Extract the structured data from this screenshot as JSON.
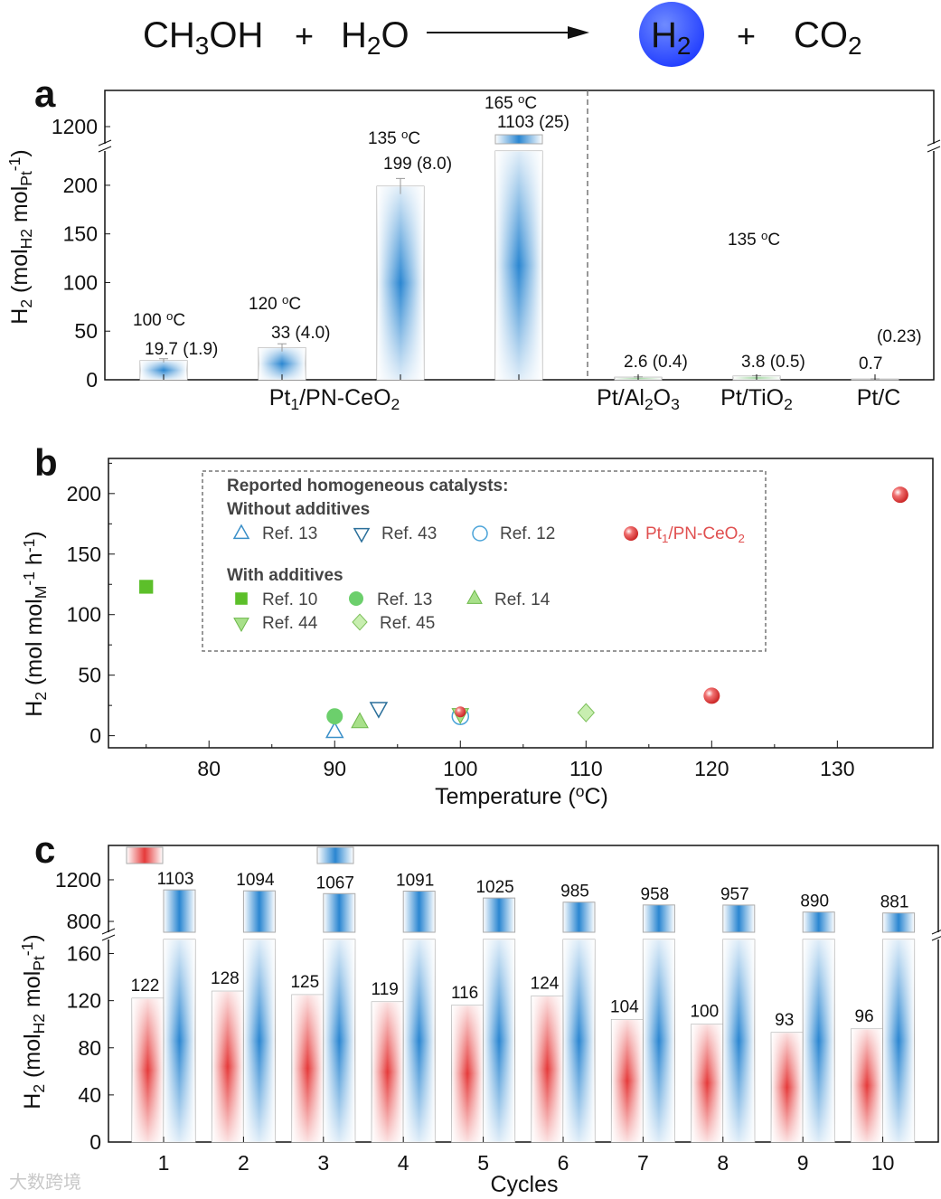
{
  "equation": {
    "reactant1": [
      [
        "CH",
        ""
      ],
      [
        "3",
        "sub"
      ],
      [
        "OH",
        ""
      ]
    ],
    "plus1": "+",
    "reactant2": [
      [
        "H",
        ""
      ],
      [
        "2",
        "sub"
      ],
      [
        "O",
        ""
      ]
    ],
    "product1": [
      [
        "H",
        ""
      ],
      [
        "2",
        "sub"
      ]
    ],
    "plus2": "+",
    "product2": [
      [
        "CO",
        ""
      ],
      [
        "2",
        "sub"
      ]
    ],
    "h2_circle_color": "#1f3bff"
  },
  "chart_data": [
    {
      "panel": "a",
      "type": "bar",
      "ylabel": [
        [
          "H",
          ""
        ],
        [
          "2",
          "sub"
        ],
        [
          " (mol",
          ""
        ],
        [
          "H2",
          "sub"
        ],
        [
          " mol",
          ""
        ],
        [
          "Pt",
          "sub"
        ],
        [
          "-1",
          "sup"
        ],
        [
          ")",
          ""
        ]
      ],
      "y_ticks_lower": [
        0,
        50,
        100,
        150,
        200
      ],
      "y_ticks_upper": [
        1200
      ],
      "ylim_lower": [
        0,
        225
      ],
      "ylim_upper": [
        953,
        1630
      ],
      "axis_break": true,
      "bars": [
        {
          "group": "Pt1/PN-CeO2",
          "temp": "100",
          "value": 19.7,
          "error": 1.9,
          "value_label": "19.7",
          "error_label": "(1.9)"
        },
        {
          "group": "Pt1/PN-CeO2",
          "temp": "120",
          "value": 33,
          "error": 4.0,
          "value_label": "33",
          "error_label": "(4.0)"
        },
        {
          "group": "Pt1/PN-CeO2",
          "temp": "135",
          "value": 199,
          "error": 8.0,
          "value_label": "199",
          "error_label": "(8.0)"
        },
        {
          "group": "Pt1/PN-CeO2",
          "temp": "165",
          "value": 1103,
          "error": 25,
          "value_label": "1103",
          "error_label": "(25)"
        },
        {
          "group": "Pt/Al2O3",
          "temp": "",
          "value": 2.6,
          "error": 0.4,
          "value_label": "2.6",
          "error_label": "(0.4)"
        },
        {
          "group": "Pt/TiO2",
          "temp": "",
          "value": 3.8,
          "error": 0.5,
          "value_label": "3.8",
          "error_label": "(0.5)"
        },
        {
          "group": "Pt/C",
          "temp": "",
          "value": 0.7,
          "error": 0.23,
          "value_label": "0.7",
          "error_label": "(0.23)"
        }
      ],
      "temp_unit": [
        [
          "o",
          "sup"
        ],
        [
          "C",
          ""
        ]
      ],
      "shared_temp_label": "135",
      "categories": [
        [
          [
            "Pt",
            ""
          ],
          [
            "1",
            "sub"
          ],
          [
            "/PN-CeO",
            ""
          ],
          [
            "2",
            "sub"
          ]
        ],
        [
          [
            "Pt/Al",
            ""
          ],
          [
            "2",
            "sub"
          ],
          [
            "O",
            ""
          ],
          [
            "3",
            "sub"
          ]
        ],
        [
          [
            "Pt/TiO",
            ""
          ],
          [
            "2",
            "sub"
          ]
        ],
        [
          [
            "Pt/C",
            ""
          ]
        ]
      ],
      "bar_color": "#2a86d1",
      "other_bar_color": "#8fd08f"
    },
    {
      "panel": "b",
      "type": "scatter",
      "xlabel": [
        [
          "Temperature (",
          ""
        ],
        [
          "o",
          "sup"
        ],
        [
          "C)",
          ""
        ]
      ],
      "ylabel": [
        [
          "H",
          ""
        ],
        [
          "2",
          "sub"
        ],
        [
          " (mol mol",
          ""
        ],
        [
          "M",
          "sub"
        ],
        [
          "-1",
          "sup"
        ],
        [
          " h",
          ""
        ],
        [
          "-1",
          "sup"
        ],
        [
          ")",
          ""
        ]
      ],
      "xlim": [
        72,
        137.6
      ],
      "ylim": [
        -10,
        229
      ],
      "x_ticks": [
        80,
        90,
        100,
        110,
        120,
        130
      ],
      "y_ticks": [
        0,
        50,
        100,
        150,
        200
      ],
      "legend_title": "Reported homogeneous catalysts:",
      "legend_group1": "Without additives",
      "legend_group2": "With additives",
      "series": [
        {
          "name": "Ref. 13",
          "group": "without",
          "marker": "triangle-up-open",
          "color": "#3a8fc8",
          "points": [
            [
              90,
              4
            ]
          ]
        },
        {
          "name": "Ref. 43",
          "group": "without",
          "marker": "triangle-down-open",
          "color": "#2a6f9a",
          "points": [
            [
              93.5,
              22
            ]
          ]
        },
        {
          "name": "Ref. 12",
          "group": "without",
          "marker": "circle-open",
          "color": "#4aa3d8",
          "points": [
            [
              100,
              16
            ]
          ]
        },
        {
          "name": "Ref. 10",
          "group": "with",
          "marker": "square",
          "color": "#5cbf2a",
          "points": [
            [
              75,
              123
            ]
          ]
        },
        {
          "name": "Ref. 13",
          "group": "with",
          "marker": "circle",
          "color": "#6ccf6c",
          "points": [
            [
              90,
              16
            ]
          ]
        },
        {
          "name": "Ref. 14",
          "group": "with",
          "marker": "triangle-up",
          "color": "#a8e08a",
          "points": [
            [
              92,
              12
            ]
          ]
        },
        {
          "name": "Ref. 44",
          "group": "with",
          "marker": "triangle-down",
          "color": "#a8e08a",
          "points": [
            [
              100,
              17
            ]
          ]
        },
        {
          "name": "Ref. 45",
          "group": "with",
          "marker": "diamond",
          "color": "#c8eeb0",
          "points": [
            [
              110,
              19
            ]
          ]
        },
        {
          "name": [
            [
              "Pt",
              ""
            ],
            [
              "1",
              "sub"
            ],
            [
              "/PN-CeO",
              ""
            ],
            [
              "2",
              "sub"
            ]
          ],
          "group": "this",
          "marker": "sphere",
          "color": "#e84848",
          "points": [
            [
              100,
              19.7
            ],
            [
              120,
              33
            ],
            [
              135,
              199
            ]
          ]
        }
      ]
    },
    {
      "panel": "c",
      "type": "bar",
      "xlabel": "Cycles",
      "ylabel": [
        [
          "H",
          ""
        ],
        [
          "2",
          "sub"
        ],
        [
          " (mol",
          ""
        ],
        [
          "H2",
          "sub"
        ],
        [
          " mol",
          ""
        ],
        [
          "Pt",
          "sub"
        ],
        [
          "-1",
          "sup"
        ],
        [
          ")",
          ""
        ]
      ],
      "categories": [
        "1",
        "2",
        "3",
        "4",
        "5",
        "6",
        "7",
        "8",
        "9",
        "10"
      ],
      "y_ticks_lower": [
        0,
        40,
        80,
        120,
        160
      ],
      "y_ticks_upper": [
        800,
        1200
      ],
      "ylim_lower": [
        0,
        175
      ],
      "ylim_upper": [
        661,
        1530
      ],
      "axis_break": true,
      "series": [
        {
          "name": "red",
          "color": "#e53a3a",
          "values": [
            122,
            128,
            125,
            119,
            116,
            124,
            104,
            100,
            93,
            96
          ]
        },
        {
          "name": "blue",
          "color": "#2a86d1",
          "values": [
            1103,
            1094,
            1067,
            1091,
            1025,
            985,
            958,
            957,
            890,
            881
          ]
        }
      ]
    }
  ],
  "panel_labels": [
    "a",
    "b",
    "c"
  ],
  "watermark": "大数跨境"
}
